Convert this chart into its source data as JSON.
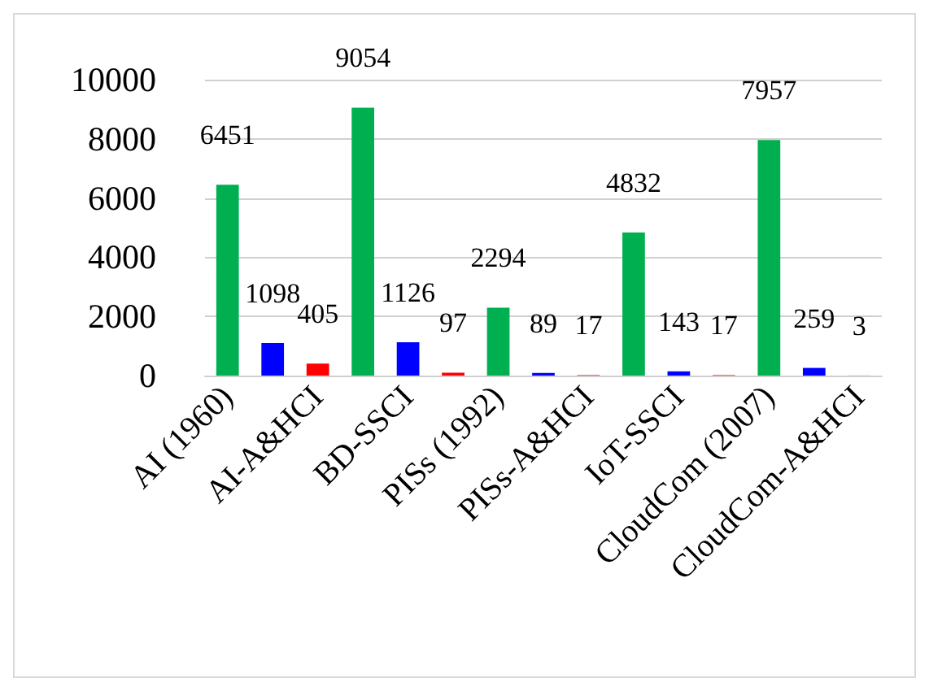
{
  "chart_data": {
    "type": "bar",
    "categories": [
      "AI (1960)",
      null,
      "AI-A&HCI",
      null,
      "BD-SSCI",
      null,
      "PISs (1992)",
      null,
      "PISs-A&HCI",
      null,
      "IoT-SSCI",
      null,
      "CloudCom (2007)",
      null,
      "CloudCom-A&HCI"
    ],
    "values": [
      6451,
      1098,
      405,
      9054,
      1126,
      97,
      2294,
      89,
      17,
      4832,
      143,
      17,
      7957,
      259,
      3
    ],
    "colors": [
      "#00b050",
      "#0000ff",
      "#ff0000",
      "#00b050",
      "#0000ff",
      "#ff0000",
      "#00b050",
      "#0000ff",
      "#ff0000",
      "#00b050",
      "#0000ff",
      "#ff0000",
      "#00b050",
      "#0000ff",
      "#ff0000"
    ],
    "ylim": [
      0,
      10000
    ],
    "yticks": [
      0,
      2000,
      4000,
      6000,
      8000,
      10000
    ],
    "grid": "y",
    "data_labels": true
  }
}
